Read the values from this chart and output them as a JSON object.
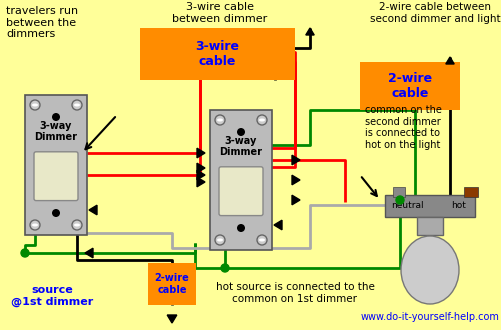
{
  "bg_color": "#FFFF99",
  "orange": "#FF8C00",
  "blue": "#0000FF",
  "green": "#008800",
  "red": "#FF0000",
  "black": "#000000",
  "brown": "#8B3A00",
  "sw_gray": "#BBBBBB",
  "dk_gray": "#888888",
  "wire_gray": "#AAAAAA",
  "labels": {
    "top_left": "travelers run\nbetween the\ndimmers",
    "top_center": "3-wire cable\nbetween dimmer",
    "top_right": "2-wire cable between\nsecond dimmer and light",
    "cable_3wire": "3-wire\ncable",
    "cable_2wire_right": "2-wire\ncable",
    "cable_2wire_bottom": "2-wire\ncable",
    "dimmer1": "3-way\nDimmer",
    "dimmer2": "3-way\nDimmer",
    "source": "source\n@1st dimmer",
    "bottom_center": "hot source is connected to the\ncommon on 1st dimmer",
    "right_note": "common on the\nsecond dimmer\nis connected to\nhot on the light",
    "neutral": "neutral",
    "hot": "hot",
    "website": "www.do-it-yourself-help.com"
  }
}
